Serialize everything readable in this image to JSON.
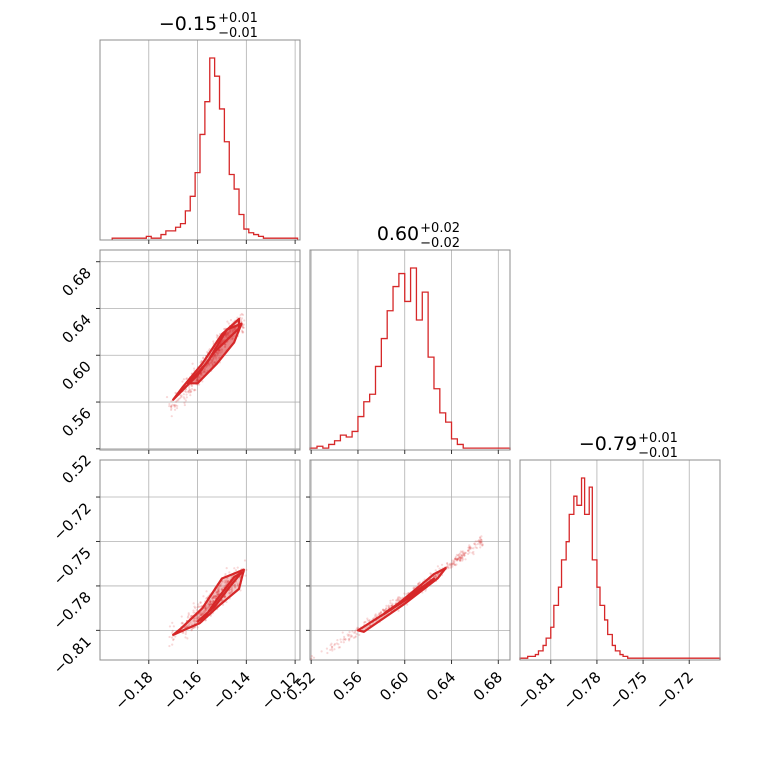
{
  "chart_data": {
    "type": "corner",
    "color": "#d62728",
    "grid": true,
    "panels": [
      {
        "id": "hist-0",
        "kind": "histogram",
        "row": 0,
        "col": 0,
        "title": {
          "main": "−0.15",
          "sup": "+0.01",
          "sub": "−0.01"
        },
        "xlim": [
          -0.2,
          -0.118
        ],
        "xticks": [
          -0.18,
          -0.16,
          -0.14,
          -0.12
        ],
        "bins": [
          -0.195,
          -0.19,
          -0.185,
          -0.181,
          -0.179,
          -0.177,
          -0.175,
          -0.173,
          -0.171,
          -0.169,
          -0.167,
          -0.165,
          -0.163,
          -0.161,
          -0.159,
          -0.157,
          -0.155,
          -0.153,
          -0.151,
          -0.149,
          -0.147,
          -0.145,
          -0.143,
          -0.141,
          -0.139,
          -0.137,
          -0.135,
          -0.133,
          -0.13,
          -0.125,
          -0.119
        ],
        "counts": [
          1,
          1,
          1,
          2,
          1,
          1,
          3,
          5,
          5,
          7,
          9,
          16,
          24,
          37,
          58,
          76,
          100,
          90,
          72,
          54,
          36,
          28,
          14,
          6,
          4,
          3,
          2,
          1,
          1,
          1
        ]
      },
      {
        "id": "hist-1",
        "kind": "histogram",
        "row": 1,
        "col": 1,
        "title": {
          "main": "0.60",
          "sup": "+0.02",
          "sub": "−0.02"
        },
        "xlim": [
          0.519,
          0.69
        ],
        "xticks": [
          0.52,
          0.56,
          0.6,
          0.64,
          0.68
        ],
        "bins": [
          0.519,
          0.525,
          0.53,
          0.535,
          0.54,
          0.545,
          0.55,
          0.555,
          0.56,
          0.565,
          0.57,
          0.575,
          0.58,
          0.585,
          0.59,
          0.595,
          0.6,
          0.605,
          0.61,
          0.615,
          0.62,
          0.625,
          0.63,
          0.635,
          0.64,
          0.645,
          0.65,
          0.66,
          0.67,
          0.68,
          0.69
        ],
        "counts": [
          1,
          2,
          1,
          3,
          5,
          8,
          7,
          10,
          18,
          26,
          30,
          45,
          60,
          75,
          88,
          95,
          80,
          98,
          70,
          85,
          50,
          33,
          20,
          15,
          6,
          3,
          1,
          1,
          1,
          1
        ]
      },
      {
        "id": "hist-2",
        "kind": "histogram",
        "row": 2,
        "col": 2,
        "title": {
          "main": "−0.79",
          "sup": "+0.01",
          "sub": "−0.01"
        },
        "xlim": [
          -0.83,
          -0.7
        ],
        "xticks": [
          -0.81,
          -0.78,
          -0.75,
          -0.72
        ],
        "bins": [
          -0.83,
          -0.825,
          -0.82,
          -0.818,
          -0.815,
          -0.813,
          -0.81,
          -0.808,
          -0.805,
          -0.803,
          -0.8,
          -0.798,
          -0.795,
          -0.793,
          -0.79,
          -0.788,
          -0.785,
          -0.783,
          -0.78,
          -0.778,
          -0.775,
          -0.773,
          -0.77,
          -0.768,
          -0.765,
          -0.763,
          -0.76,
          -0.758,
          -0.755,
          -0.75,
          -0.74,
          -0.7
        ],
        "counts": [
          1,
          2,
          3,
          5,
          8,
          12,
          18,
          30,
          40,
          55,
          65,
          80,
          90,
          85,
          100,
          80,
          95,
          55,
          40,
          30,
          22,
          14,
          8,
          5,
          3,
          2,
          1,
          1,
          1,
          1,
          1
        ]
      },
      {
        "id": "corr-1-0",
        "kind": "scatter",
        "row": 1,
        "col": 0,
        "xlim": [
          -0.2,
          -0.118
        ],
        "ylim": [
          0.519,
          0.69
        ],
        "yticks": [
          0.52,
          0.56,
          0.6,
          0.64,
          0.68
        ],
        "center": [
          -0.151,
          0.603
        ],
        "ridge": [
          [
            -0.171,
            0.556
          ],
          [
            -0.163,
            0.574
          ],
          [
            -0.155,
            0.596
          ],
          [
            -0.148,
            0.617
          ],
          [
            -0.142,
            0.628
          ]
        ],
        "spread": 0.0045,
        "contours": [
          {
            "level": "39%",
            "points": [
              [
                -0.164,
                0.576
              ],
              [
                -0.156,
                0.594
              ],
              [
                -0.148,
                0.622
              ],
              [
                -0.142,
                0.627
              ],
              [
                -0.145,
                0.611
              ],
              [
                -0.152,
                0.593
              ],
              [
                -0.16,
                0.576
              ]
            ]
          },
          {
            "level": "86%",
            "points": [
              [
                -0.17,
                0.562
              ],
              [
                -0.16,
                0.583
              ],
              [
                -0.153,
                0.603
              ],
              [
                -0.143,
                0.623
              ],
              [
                -0.143,
                0.631
              ],
              [
                -0.15,
                0.618
              ],
              [
                -0.158,
                0.593
              ],
              [
                -0.166,
                0.573
              ]
            ]
          }
        ]
      },
      {
        "id": "corr-2-0",
        "kind": "scatter",
        "row": 2,
        "col": 0,
        "xlim": [
          -0.2,
          -0.118
        ],
        "ylim": [
          -0.83,
          -0.695
        ],
        "yticks": [
          -0.81,
          -0.78,
          -0.75,
          -0.72
        ],
        "center": [
          -0.151,
          -0.789
        ],
        "ridge": [
          [
            -0.171,
            -0.813
          ],
          [
            -0.163,
            -0.804
          ],
          [
            -0.155,
            -0.793
          ],
          [
            -0.148,
            -0.781
          ],
          [
            -0.142,
            -0.771
          ]
        ],
        "spread": 0.0038,
        "contours": [
          {
            "level": "39%",
            "points": [
              [
                -0.16,
                -0.804
              ],
              [
                -0.153,
                -0.794
              ],
              [
                -0.147,
                -0.781
              ],
              [
                -0.142,
                -0.771
              ],
              [
                -0.145,
                -0.774
              ],
              [
                -0.152,
                -0.789
              ],
              [
                -0.157,
                -0.801
              ]
            ]
          },
          {
            "level": "86%",
            "points": [
              [
                -0.17,
                -0.813
              ],
              [
                -0.159,
                -0.805
              ],
              [
                -0.151,
                -0.793
              ],
              [
                -0.143,
                -0.782
              ],
              [
                -0.141,
                -0.769
              ],
              [
                -0.15,
                -0.775
              ],
              [
                -0.158,
                -0.795
              ],
              [
                -0.167,
                -0.809
              ]
            ]
          }
        ]
      },
      {
        "id": "corr-2-1",
        "kind": "scatter",
        "row": 2,
        "col": 1,
        "xlim": [
          0.519,
          0.69
        ],
        "ylim": [
          -0.83,
          -0.695
        ],
        "xticks": [
          0.52,
          0.56,
          0.6,
          0.64,
          0.68
        ],
        "center": [
          0.6,
          -0.789
        ],
        "ridge": [
          [
            0.52,
            -0.83
          ],
          [
            0.56,
            -0.81
          ],
          [
            0.6,
            -0.789
          ],
          [
            0.64,
            -0.765
          ],
          [
            0.665,
            -0.75
          ]
        ],
        "spread": 0.0018,
        "contours": [
          {
            "level": "39%",
            "points": [
              [
                0.585,
                -0.797
              ],
              [
                0.6,
                -0.789
              ],
              [
                0.62,
                -0.778
              ],
              [
                0.625,
                -0.775
              ],
              [
                0.618,
                -0.781
              ],
              [
                0.598,
                -0.791
              ],
              [
                0.582,
                -0.799
              ]
            ]
          },
          {
            "level": "86%",
            "points": [
              [
                0.56,
                -0.81
              ],
              [
                0.59,
                -0.795
              ],
              [
                0.625,
                -0.772
              ],
              [
                0.635,
                -0.768
              ],
              [
                0.628,
                -0.775
              ],
              [
                0.6,
                -0.792
              ],
              [
                0.565,
                -0.811
              ]
            ]
          }
        ]
      }
    ]
  }
}
